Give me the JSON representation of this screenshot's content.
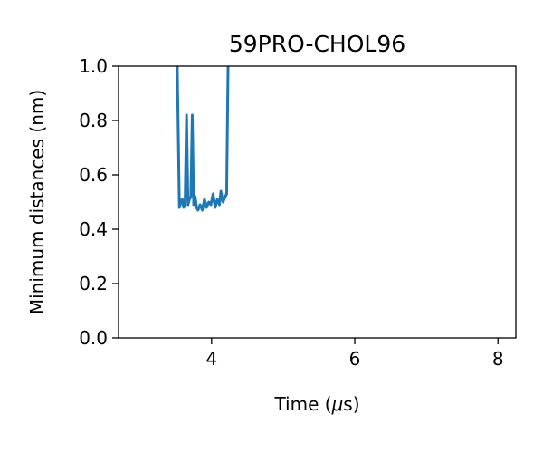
{
  "chart_data": {
    "type": "line",
    "title": "59PRO-CHOL96",
    "xlabel_prefix": "Time (",
    "xlabel_unit": "μ",
    "xlabel_suffix": "s)",
    "ylabel": "Minimum distances (nm)",
    "xlim": [
      2.7,
      8.25
    ],
    "ylim": [
      0.0,
      1.0
    ],
    "xticks": [
      4,
      6,
      8
    ],
    "xtick_labels": [
      "4",
      "6",
      "8"
    ],
    "yticks": [
      0.0,
      0.2,
      0.4,
      0.6,
      0.8,
      1.0
    ],
    "ytick_labels": [
      "0.0",
      "0.2",
      "0.4",
      "0.6",
      "0.8",
      "1.0"
    ],
    "grid": false,
    "line_color": "#1f77b4",
    "series": [
      {
        "x": [
          3.48,
          3.52,
          3.55,
          3.57,
          3.59,
          3.61,
          3.63,
          3.65,
          3.67,
          3.69,
          3.71,
          3.73,
          3.75,
          3.77,
          3.79,
          3.81,
          3.84,
          3.87,
          3.9,
          3.93,
          3.96,
          3.99,
          4.02,
          4.05,
          4.08,
          4.11,
          4.13,
          4.16,
          4.19,
          4.21,
          4.23,
          4.26
        ],
        "y": [
          1.5,
          1.0,
          0.48,
          0.5,
          0.51,
          0.48,
          0.5,
          0.82,
          0.49,
          0.51,
          0.52,
          0.82,
          0.49,
          0.52,
          0.48,
          0.47,
          0.49,
          0.47,
          0.51,
          0.48,
          0.5,
          0.49,
          0.53,
          0.48,
          0.51,
          0.49,
          0.54,
          0.5,
          0.52,
          0.53,
          1.0,
          1.5
        ]
      }
    ]
  }
}
